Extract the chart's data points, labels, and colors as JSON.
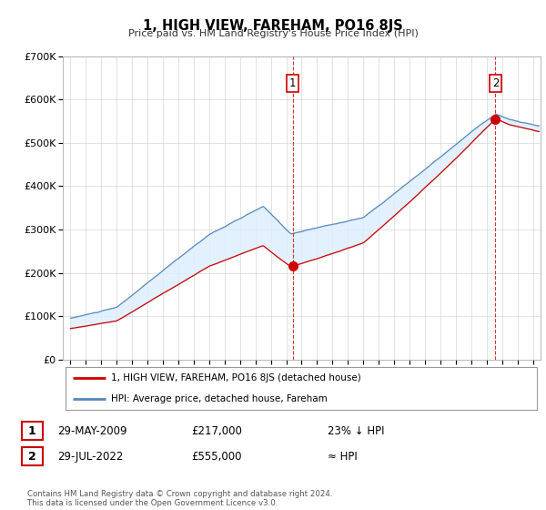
{
  "title": "1, HIGH VIEW, FAREHAM, PO16 8JS",
  "subtitle": "Price paid vs. HM Land Registry's House Price Index (HPI)",
  "ytick_values": [
    0,
    100000,
    200000,
    300000,
    400000,
    500000,
    600000,
    700000
  ],
  "ylim": [
    0,
    700000
  ],
  "xlim_start": 1994.5,
  "xlim_end": 2025.5,
  "hpi_color": "#5588bb",
  "hpi_fill_color": "#ddeeff",
  "price_color": "#cc0000",
  "sale1_year": 2009.41,
  "sale1_price": 217000,
  "sale2_year": 2022.57,
  "sale2_price": 555000,
  "legend_label1": "1, HIGH VIEW, FAREHAM, PO16 8JS (detached house)",
  "legend_label2": "HPI: Average price, detached house, Fareham",
  "table_row1": [
    "1",
    "29-MAY-2009",
    "£217,000",
    "23% ↓ HPI"
  ],
  "table_row2": [
    "2",
    "29-JUL-2022",
    "£555,000",
    "≈ HPI"
  ],
  "footer": "Contains HM Land Registry data © Crown copyright and database right 2024.\nThis data is licensed under the Open Government Licence v3.0.",
  "grid_color": "#cccccc"
}
